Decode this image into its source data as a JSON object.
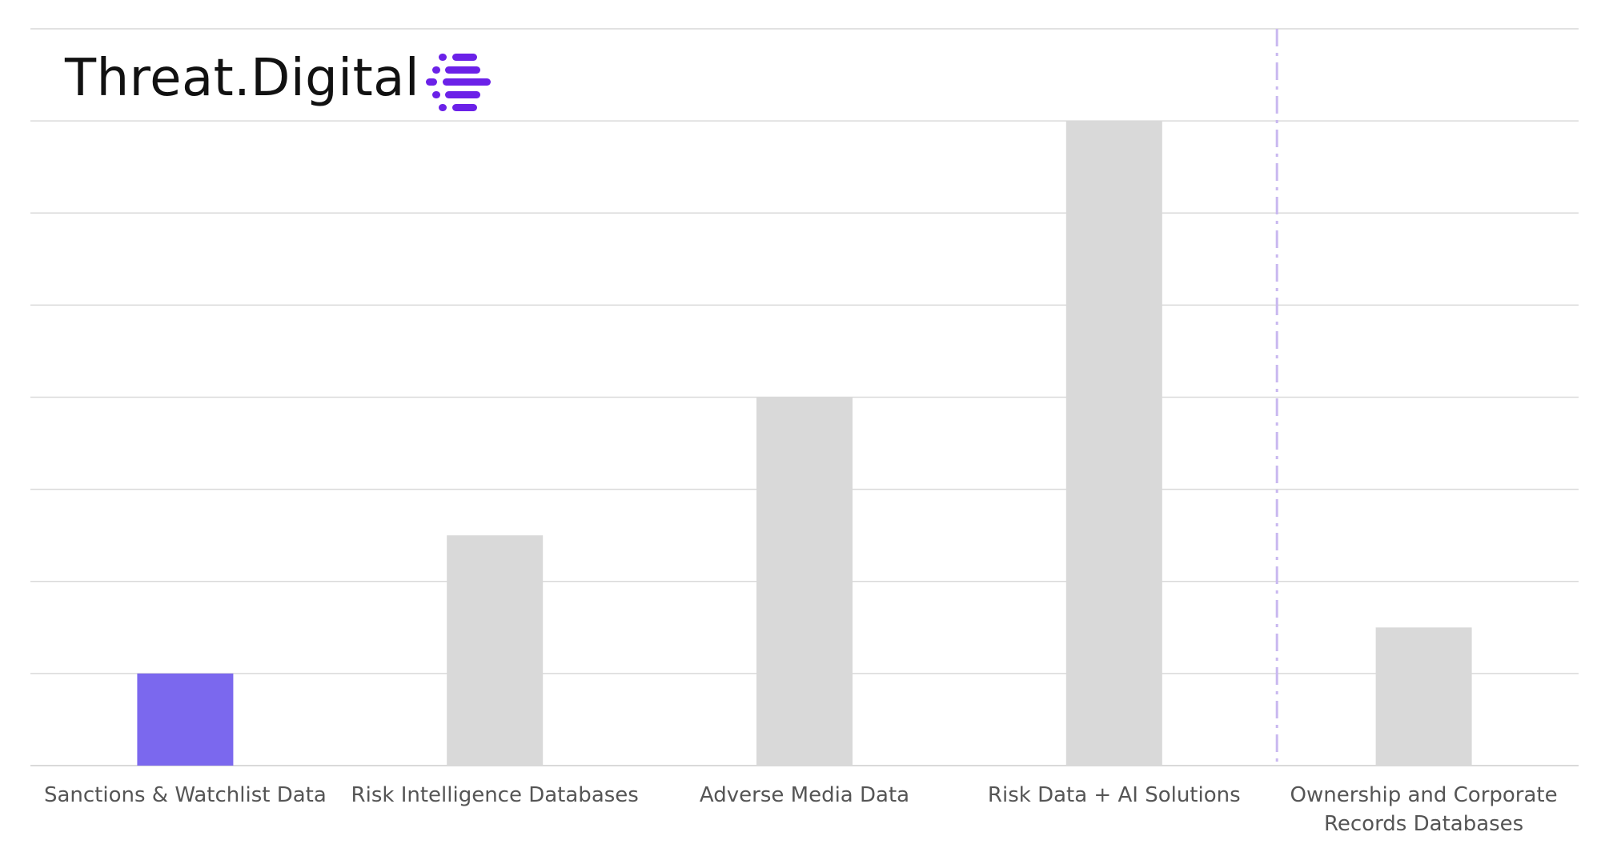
{
  "brand": {
    "name": "Threat.Digital",
    "icon": "striped-lines-logo-icon",
    "accent_color": "#6b21e8"
  },
  "chart_data": {
    "type": "bar",
    "categories": [
      "Sanctions & Watchlist Data",
      "Risk Intelligence Databases",
      "Adverse Media Data",
      "Risk Data + AI Solutions",
      "Ownership and Corporate Records Databases"
    ],
    "category_label_lines": [
      [
        "Sanctions & Watchlist Data"
      ],
      [
        "Risk Intelligence Databases"
      ],
      [
        "Adverse Media Data"
      ],
      [
        "Risk Data + AI Solutions"
      ],
      [
        "Ownership and Corporate",
        "Records Databases"
      ]
    ],
    "values": [
      1,
      2.5,
      4,
      7,
      1.5
    ],
    "ylim": [
      0,
      8
    ],
    "y_gridlines_step": 1,
    "grid": true,
    "highlighted_category": "Sanctions & Watchlist Data",
    "colors": {
      "highlight": "#7b68ee",
      "default": "#d9d9d9",
      "grid": "#d9d9d9",
      "separator": "#c9b8f0"
    },
    "separator_between_categories": [
      3,
      4
    ],
    "title": "",
    "xlabel": "",
    "ylabel": ""
  }
}
